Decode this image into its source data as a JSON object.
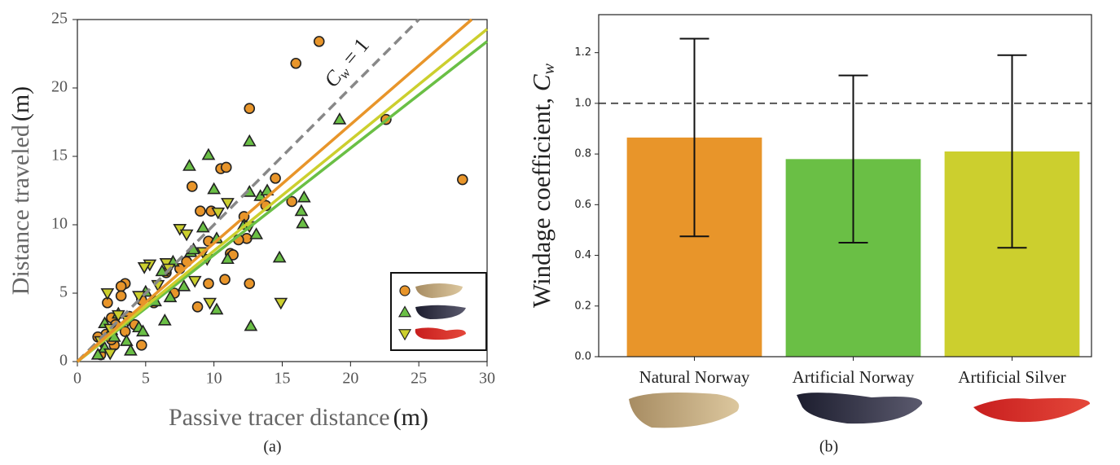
{
  "chart_data": [
    {
      "type": "scatter",
      "xlabel": "Passive tracer distance",
      "xlabel_unit": "(m)",
      "ylabel": "Distance traveled",
      "ylabel_unit": "(m)",
      "annotation": {
        "symbol": "C",
        "subscript": "w",
        "text": " = 1"
      },
      "caption": "(a)",
      "xlim": [
        0,
        30
      ],
      "ylim": [
        0,
        25
      ],
      "xticks": [
        0,
        5,
        10,
        15,
        20,
        25,
        30
      ],
      "yticks": [
        0,
        5,
        10,
        15,
        20,
        25
      ],
      "legend": "lower right",
      "series": [
        {
          "color": "#e8952a",
          "marker": "circle",
          "x": [
            17.7,
            16,
            22.6,
            28.2,
            12.6,
            10.5,
            10.9,
            14.5,
            13.8,
            15.7,
            8.4,
            12.2,
            9.8,
            12.4,
            11.8,
            9,
            12.6,
            10.8,
            11.2,
            9.6,
            8,
            7.5,
            8.8,
            6.5,
            5.6,
            4.7,
            3.5,
            3.2,
            3.2,
            2.5,
            3.8,
            2.8,
            3.5,
            4.7,
            2.2,
            2.1,
            1.5,
            1.7,
            2.7,
            2.5,
            4.2,
            7.1,
            9.6,
            11.4
          ],
          "values": [
            23.4,
            21.8,
            17.7,
            13.3,
            18.5,
            14.1,
            14.2,
            13.4,
            11.4,
            11.7,
            12.8,
            10.6,
            11,
            9,
            8.9,
            11,
            5.7,
            6,
            7.9,
            8.8,
            7.3,
            6.8,
            4,
            6.5,
            4.3,
            4.5,
            5.7,
            5.5,
            4.8,
            3.2,
            3.3,
            2.7,
            2.2,
            1.2,
            4.3,
            2,
            1.8,
            0.5,
            1.2,
            1.6,
            2.7,
            5,
            5.7,
            7.8
          ]
        },
        {
          "color": "#6abf45",
          "marker": "triangle-up",
          "x": [
            9.6,
            8.2,
            12.6,
            19.2,
            12.6,
            13.4,
            13.9,
            10,
            16.6,
            16.4,
            16.5,
            13.1,
            12.2,
            9.2,
            8.3,
            7,
            6.2,
            7.8,
            5.7,
            6.4,
            4.5,
            3,
            2.5,
            2,
            1.5,
            3.6,
            14.8,
            12.7,
            10.2,
            6.8,
            4.8,
            2.7,
            3.9,
            10.2,
            11,
            8.5,
            5,
            2
          ],
          "values": [
            15.1,
            14.3,
            16.1,
            17.7,
            12.4,
            12.1,
            12.5,
            12.6,
            12,
            11,
            10.1,
            9.3,
            10,
            9.8,
            8,
            7.3,
            6.6,
            5.5,
            4.4,
            3,
            2.5,
            3.5,
            2.3,
            1,
            0.5,
            1.5,
            7.6,
            2.6,
            3.8,
            4.7,
            2.2,
            1.8,
            0.8,
            9,
            7.5,
            8.2,
            5.1,
            2.8
          ]
        },
        {
          "color": "#cccf2e",
          "marker": "triangle-down",
          "x": [
            7.5,
            10.3,
            11,
            5.3,
            4.9,
            14.9,
            9.5,
            6.5,
            8.6,
            9.7,
            2.2,
            3,
            3.7,
            2.4,
            1.7,
            2.4,
            4.5,
            6.7,
            8,
            9.2,
            5.9,
            12.6
          ],
          "values": [
            9.7,
            10.9,
            11.6,
            7.1,
            6.9,
            4.3,
            7.5,
            7.2,
            5.9,
            4.3,
            5,
            3.4,
            3,
            2.4,
            1.5,
            0.6,
            4.8,
            6.8,
            9.3,
            8,
            5.6,
            9.9
          ]
        }
      ],
      "lines": [
        {
          "color": "#888888",
          "dashed": true,
          "x": [
            0,
            25
          ],
          "y": [
            0,
            25
          ]
        },
        {
          "color": "#6abf45",
          "dashed": false,
          "x": [
            0,
            30
          ],
          "y": [
            0,
            23.4
          ]
        },
        {
          "color": "#cccf2e",
          "dashed": false,
          "x": [
            0,
            30
          ],
          "y": [
            0,
            24.3
          ]
        },
        {
          "color": "#e8952a",
          "dashed": false,
          "x": [
            0,
            28.87
          ],
          "y": [
            0,
            25
          ]
        }
      ]
    },
    {
      "type": "bar",
      "ylabel": "Windage coefficient, ",
      "ylabel_symbol": "C",
      "ylabel_subscript": "w",
      "caption": "(b)",
      "categories": [
        "Natural Norway",
        "Artificial Norway",
        "Artificial Silver"
      ],
      "values": [
        0.865,
        0.78,
        0.81
      ],
      "errors": [
        0.39,
        0.33,
        0.38
      ],
      "colors": [
        "#e8952a",
        "#6abf45",
        "#cccf2e"
      ],
      "reference_line": 1,
      "ylim": [
        0,
        1.35
      ],
      "yticks": [
        {
          "value": 0,
          "label": "0.0"
        },
        0.2,
        0.4,
        0.6,
        0.8,
        {
          "value": 1,
          "label": "1.0"
        },
        1.2
      ]
    }
  ]
}
